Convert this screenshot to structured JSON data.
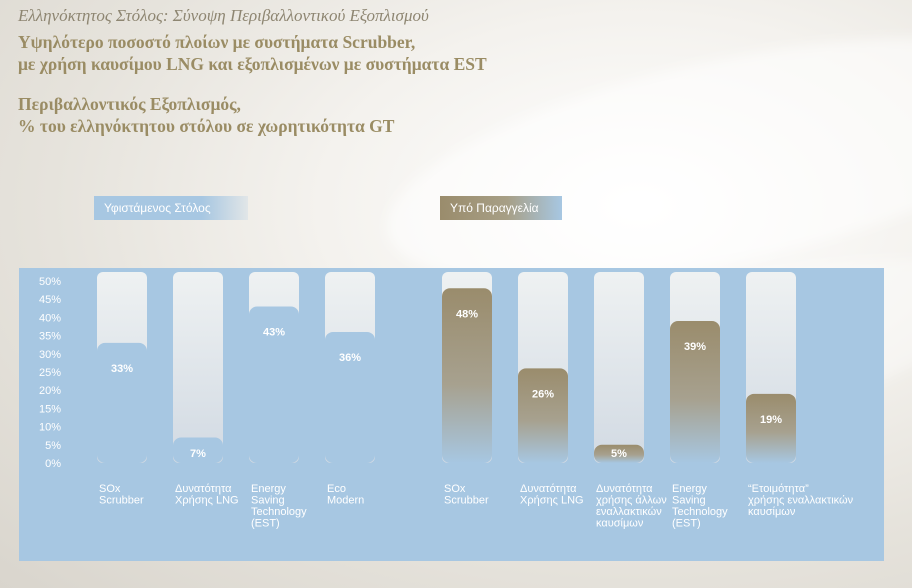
{
  "header": {
    "kicker": "Ελληνόκτητος Στόλος: Σύνοψη Περιβαλλοντικού Εξοπλισμού",
    "headline_line1": "Υψηλότερο ποσοστό πλοίων με συστήματα Scrubber,",
    "headline_line2": "με χρήση καυσίμου LNG και εξοπλισμένων με συστήματα EST",
    "subtitle_line1": "Περιβαλλοντικός Εξοπλισμός,",
    "subtitle_line2": "% του ελληνόκτητου στόλου σε χωρητικότητα GT"
  },
  "legend": {
    "existing": "Υφιστάμενος Στόλος",
    "orders": "Υπό Παραγγελία"
  },
  "colors": {
    "panel": "#a7c7e2",
    "existing_bar": "#a7c7e2",
    "orders_bar": "#9a8c6c",
    "title": "#9a8c64"
  },
  "chart_data": {
    "type": "bar",
    "title": "Περιβαλλοντικός Εξοπλισμός, % του ελληνόκτητου στόλου σε χωρητικότητα GT",
    "ylim": [
      0,
      50
    ],
    "yticks": [
      "0%",
      "5%",
      "10%",
      "15%",
      "20%",
      "25%",
      "30%",
      "35%",
      "40%",
      "45%",
      "50%"
    ],
    "grid": false,
    "legend_position": "top",
    "series": [
      {
        "name": "Υφιστάμενος Στόλος",
        "categories": [
          [
            "SOx",
            "Scrubber"
          ],
          [
            "Δυνατότητα",
            "Χρήσης LNG"
          ],
          [
            "Energy",
            "Saving",
            "Technology",
            "(EST)"
          ],
          [
            "Eco",
            "Modern"
          ]
        ],
        "values": [
          33,
          7,
          43,
          36
        ],
        "labels": [
          "33%",
          "7%",
          "43%",
          "36%"
        ]
      },
      {
        "name": "Υπό Παραγγελία",
        "categories": [
          [
            "SOx",
            "Scrubber"
          ],
          [
            "Δυνατότητα",
            "Χρήσης LNG"
          ],
          [
            "Δυνατότητα",
            "χρήσης άλλων",
            "εναλλακτικών",
            "καυσίμων"
          ],
          [
            "Energy",
            "Saving",
            "Technology",
            "(EST)"
          ],
          [
            "“Ετοιμότητα”",
            "χρήσης εναλλακτικών",
            "καυσίμων"
          ]
        ],
        "values": [
          48,
          26,
          5,
          39,
          19
        ],
        "labels": [
          "48%",
          "26%",
          "5%",
          "39%",
          "19%"
        ]
      }
    ]
  }
}
